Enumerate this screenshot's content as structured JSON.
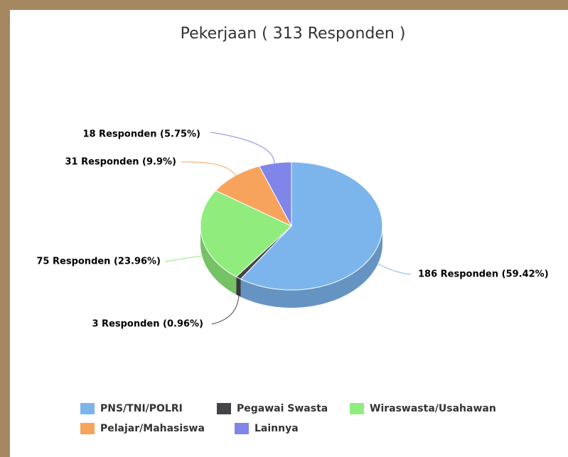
{
  "chart_data": {
    "type": "pie",
    "title": "Pekerjaan ( 313 Responden )",
    "categories": [
      "PNS/TNI/POLRI",
      "Pegawai Swasta",
      "Wiraswasta/Usahawan",
      "Pelajar/Mahasiswa",
      "Lainnya"
    ],
    "values": [
      186,
      3,
      75,
      31,
      18
    ],
    "value_labels": [
      "186 Responden (59.42%)",
      "3 Responden (0.96%)",
      "75 Responden (23.96%)",
      "31 Responden (9.9%)",
      "18 Responden (5.75%)"
    ],
    "colors": [
      "#7cb5ec",
      "#434348",
      "#90ed7d",
      "#f7a35c",
      "#8085e9"
    ],
    "legend": "bottom"
  }
}
